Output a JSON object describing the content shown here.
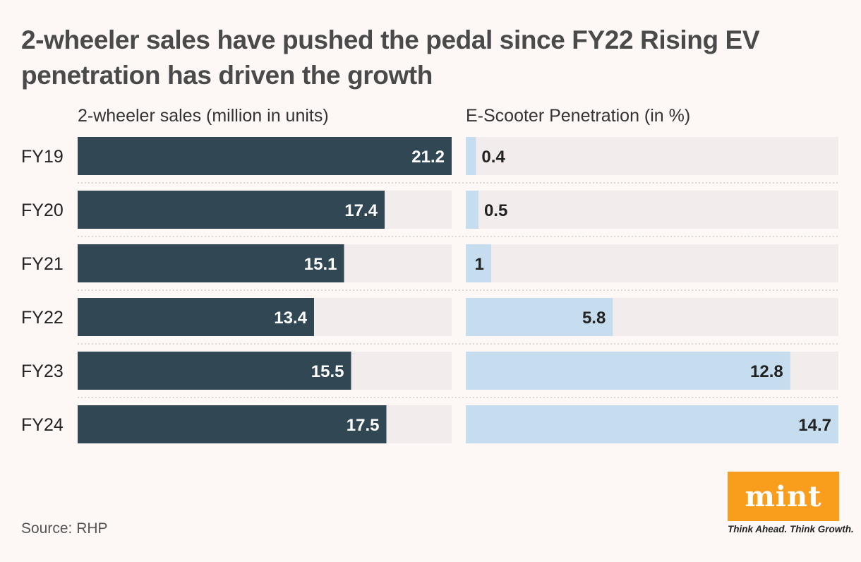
{
  "chart_data": {
    "type": "bar",
    "title": "2-wheeler sales have pushed the pedal since FY22 Rising EV penetration has driven the growth",
    "categories": [
      "FY19",
      "FY20",
      "FY21",
      "FY22",
      "FY23",
      "FY24"
    ],
    "series": [
      {
        "name": "2-wheeler sales (million in units)",
        "values": [
          21.2,
          17.4,
          15.1,
          13.4,
          15.5,
          17.5
        ],
        "labels": [
          "21.2",
          "17.4",
          "15.1",
          "13.4",
          "15.5",
          "17.5"
        ],
        "max": 21.2,
        "color": "#314854",
        "label_color": "#ffffff"
      },
      {
        "name": "E-Scooter Penetration (in %)",
        "values": [
          0.4,
          0.5,
          1,
          5.8,
          12.8,
          14.7
        ],
        "labels": [
          "0.4",
          "0.5",
          "1",
          "5.8",
          "12.8",
          "14.7"
        ],
        "max": 14.7,
        "color": "#c5ddee",
        "label_color": "#222222"
      }
    ],
    "track_color": "#f2ecec",
    "source": "Source: RHP"
  },
  "brand": {
    "logo_text": "mint",
    "tagline": "Think Ahead. Think Growth.",
    "logo_color": "#f99d1c"
  }
}
